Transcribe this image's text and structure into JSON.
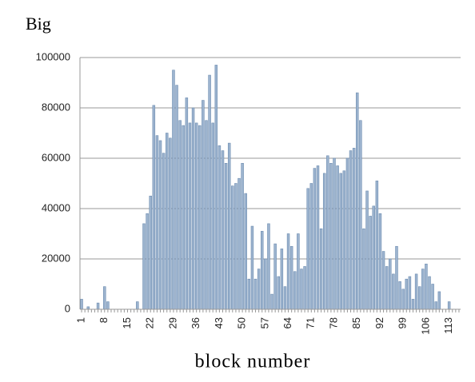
{
  "chart_data": {
    "type": "bar",
    "title": "Big",
    "x_label": "block number",
    "categories": [
      "1",
      null,
      null,
      null,
      null,
      null,
      null,
      "8",
      null,
      null,
      null,
      null,
      null,
      null,
      "15",
      null,
      null,
      null,
      null,
      null,
      null,
      "22",
      null,
      null,
      null,
      null,
      null,
      null,
      "29",
      null,
      null,
      null,
      null,
      null,
      null,
      "36",
      null,
      null,
      null,
      null,
      null,
      null,
      "43",
      null,
      null,
      null,
      null,
      null,
      null,
      "50",
      null,
      null,
      null,
      null,
      null,
      null,
      "57",
      null,
      null,
      null,
      null,
      null,
      null,
      "64",
      null,
      null,
      null,
      null,
      null,
      null,
      "71",
      null,
      null,
      null,
      null,
      null,
      null,
      "78",
      null,
      null,
      null,
      null,
      null,
      null,
      "85",
      null,
      null,
      null,
      null,
      null,
      null,
      "92",
      null,
      null,
      null,
      null,
      null,
      null,
      "99",
      null,
      null,
      null,
      null,
      null,
      null,
      "106",
      null,
      null,
      null,
      null,
      null,
      null,
      "113",
      null,
      null,
      null
    ],
    "values": [
      4000,
      0,
      1000,
      0,
      0,
      2500,
      0,
      9000,
      3000,
      0,
      0,
      0,
      0,
      0,
      0,
      0,
      0,
      3000,
      0,
      34000,
      38000,
      45000,
      81000,
      69000,
      67000,
      62000,
      70000,
      68000,
      95000,
      89000,
      75000,
      73000,
      84000,
      74000,
      80000,
      74000,
      73000,
      83000,
      75000,
      93000,
      74000,
      97000,
      65000,
      63000,
      58000,
      66000,
      49000,
      50000,
      52000,
      58000,
      46000,
      12000,
      33000,
      12000,
      16000,
      31000,
      20000,
      34000,
      6000,
      26000,
      13000,
      24000,
      9000,
      30000,
      25000,
      15000,
      30000,
      16000,
      17000,
      48000,
      50000,
      56000,
      57000,
      32000,
      54000,
      61000,
      58000,
      60000,
      57000,
      54000,
      55000,
      60000,
      63000,
      64000,
      86000,
      75000,
      32000,
      47000,
      37000,
      41000,
      51000,
      38000,
      23000,
      17000,
      20000,
      14000,
      25000,
      11000,
      8000,
      12000,
      13000,
      4000,
      14000,
      9000,
      16000,
      18000,
      13000,
      10000,
      3000,
      7000,
      0,
      0,
      3000,
      0,
      0,
      0
    ],
    "color": "#9db4cf",
    "ylim": [
      0,
      100000
    ],
    "yticks": [
      0,
      20000,
      40000,
      60000,
      80000,
      100000
    ],
    "grid": true
  }
}
